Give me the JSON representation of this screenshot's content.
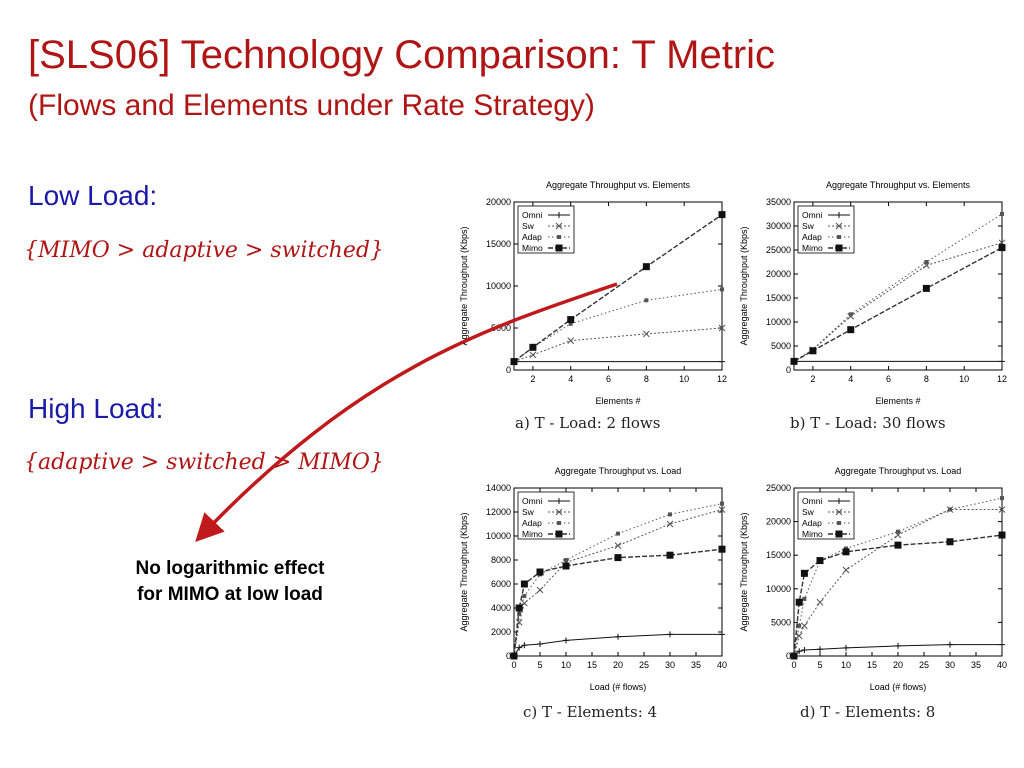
{
  "slide": {
    "title": "[SLS06] Technology Comparison: T Metric",
    "subtitle": "(Flows and Elements under Rate Strategy)",
    "low_load_heading": "Low Load:",
    "low_load_formula": "{MIMO > adaptive > switched}",
    "high_load_heading": "High Load:",
    "high_load_formula": "{adaptive > switched > MIMO}",
    "note_line1": "No logarithmic effect",
    "note_line2": "for MIMO at low load",
    "arrow_color": "#c0191c"
  },
  "chart_data": [
    {
      "type": "line",
      "title": "Aggregate Throughput vs. Elements",
      "xlabel": "Elements #",
      "ylabel": "Aggregate Throughput (Kbps)",
      "caption": "a) T - Load: 2 flows",
      "xlim": [
        1,
        12
      ],
      "ylim": [
        0,
        20000
      ],
      "xticks": [
        2,
        4,
        6,
        8,
        10,
        12
      ],
      "yticks": [
        0,
        5000,
        10000,
        15000,
        20000
      ],
      "legend_position": "top-left",
      "series": [
        {
          "name": "Omni",
          "x": [
            1,
            12
          ],
          "y": [
            1000,
            1000
          ]
        },
        {
          "name": "Sw",
          "x": [
            1,
            2,
            4,
            8,
            12
          ],
          "y": [
            1000,
            1800,
            3500,
            4300,
            5000
          ]
        },
        {
          "name": "Adap",
          "x": [
            1,
            2,
            4,
            8,
            12
          ],
          "y": [
            1000,
            2700,
            5500,
            8300,
            9600
          ]
        },
        {
          "name": "Mimo",
          "x": [
            1,
            2,
            4,
            8,
            12
          ],
          "y": [
            1000,
            2700,
            6000,
            12300,
            18500
          ]
        }
      ]
    },
    {
      "type": "line",
      "title": "Aggregate Throughput vs. Elements",
      "xlabel": "Elements #",
      "ylabel": "Aggregate Throughput (Kbps)",
      "caption": "b) T - Load: 30 flows",
      "xlim": [
        1,
        12
      ],
      "ylim": [
        0,
        35000
      ],
      "xticks": [
        2,
        4,
        6,
        8,
        10,
        12
      ],
      "yticks": [
        0,
        5000,
        10000,
        15000,
        20000,
        25000,
        30000,
        35000
      ],
      "legend_position": "top-left",
      "series": [
        {
          "name": "Omni",
          "x": [
            1,
            12
          ],
          "y": [
            1800,
            1800
          ]
        },
        {
          "name": "Sw",
          "x": [
            1,
            2,
            4,
            8,
            12
          ],
          "y": [
            1800,
            4200,
            11200,
            21800,
            26500
          ]
        },
        {
          "name": "Adap",
          "x": [
            1,
            2,
            4,
            8,
            12
          ],
          "y": [
            1800,
            4300,
            11600,
            22500,
            32500
          ]
        },
        {
          "name": "Mimo",
          "x": [
            1,
            2,
            4,
            8,
            12
          ],
          "y": [
            1800,
            4000,
            8400,
            17000,
            25500
          ]
        }
      ]
    },
    {
      "type": "line",
      "title": "Aggregate Throughput vs. Load",
      "xlabel": "Load (# flows)",
      "ylabel": "Aggregate Throughput (Kbps)",
      "caption": "c) T - Elements: 4",
      "xlim": [
        0,
        40
      ],
      "ylim": [
        0,
        14000
      ],
      "xticks": [
        0,
        5,
        10,
        15,
        20,
        25,
        30,
        35,
        40
      ],
      "yticks": [
        0,
        2000,
        4000,
        6000,
        8000,
        10000,
        12000,
        14000
      ],
      "legend_position": "top-left",
      "series": [
        {
          "name": "Omni",
          "x": [
            0,
            1,
            2,
            5,
            10,
            20,
            30,
            40
          ],
          "y": [
            0,
            700,
            900,
            1000,
            1300,
            1600,
            1800,
            1800
          ]
        },
        {
          "name": "Sw",
          "x": [
            0,
            1,
            2,
            5,
            10,
            20,
            30,
            40
          ],
          "y": [
            0,
            2800,
            4400,
            5500,
            7800,
            9200,
            11000,
            12200
          ]
        },
        {
          "name": "Adap",
          "x": [
            0,
            1,
            2,
            5,
            10,
            20,
            30,
            40
          ],
          "y": [
            0,
            3500,
            5000,
            6800,
            8000,
            10200,
            11800,
            12700
          ]
        },
        {
          "name": "Mimo",
          "x": [
            0,
            1,
            2,
            5,
            10,
            20,
            30,
            40
          ],
          "y": [
            0,
            4000,
            6000,
            7000,
            7500,
            8200,
            8400,
            8900
          ]
        }
      ]
    },
    {
      "type": "line",
      "title": "Aggregate Throughput vs. Load",
      "xlabel": "Load (# flows)",
      "ylabel": "Aggregate Throughput (Kbps)",
      "caption": "d) T - Elements: 8",
      "xlim": [
        0,
        40
      ],
      "ylim": [
        0,
        25000
      ],
      "xticks": [
        0,
        5,
        10,
        15,
        20,
        25,
        30,
        35,
        40
      ],
      "yticks": [
        0,
        5000,
        10000,
        15000,
        20000,
        25000
      ],
      "legend_position": "top-left",
      "series": [
        {
          "name": "Omni",
          "x": [
            0,
            1,
            2,
            5,
            10,
            20,
            30,
            40
          ],
          "y": [
            0,
            700,
            900,
            1000,
            1200,
            1500,
            1700,
            1700
          ]
        },
        {
          "name": "Sw",
          "x": [
            0,
            1,
            2,
            5,
            10,
            20,
            30,
            40
          ],
          "y": [
            0,
            3000,
            4500,
            8000,
            12800,
            18000,
            21800,
            21800
          ]
        },
        {
          "name": "Adap",
          "x": [
            0,
            1,
            2,
            5,
            10,
            20,
            30,
            40
          ],
          "y": [
            0,
            4500,
            8500,
            14200,
            16000,
            18500,
            21800,
            23500
          ]
        },
        {
          "name": "Mimo",
          "x": [
            0,
            1,
            2,
            5,
            10,
            20,
            30,
            40
          ],
          "y": [
            0,
            8000,
            12300,
            14200,
            15500,
            16500,
            17000,
            18000
          ]
        }
      ]
    }
  ]
}
